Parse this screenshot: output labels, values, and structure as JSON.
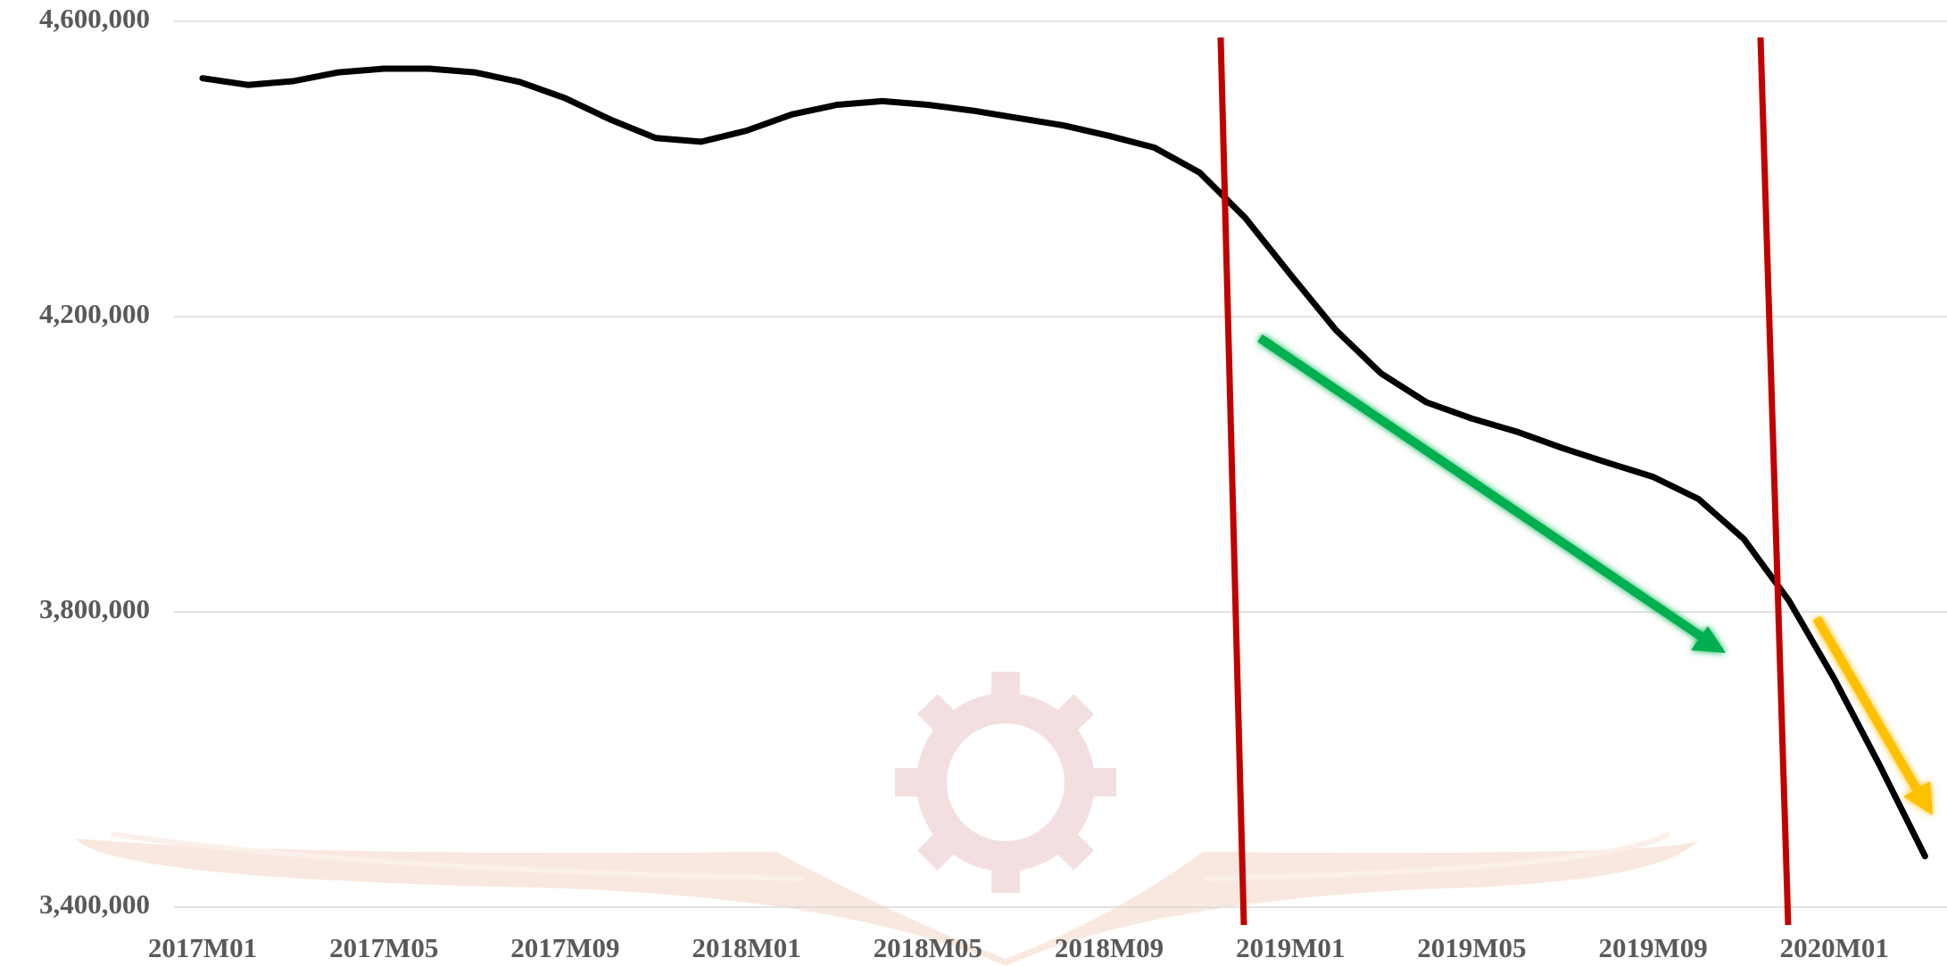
{
  "chart_data": {
    "type": "line",
    "categories": [
      "2017M01",
      null,
      null,
      null,
      "2017M05",
      null,
      null,
      null,
      "2017M09",
      null,
      null,
      null,
      "2018M01",
      null,
      null,
      null,
      "2018M05",
      null,
      null,
      null,
      "2018M09",
      null,
      null,
      null,
      "2019M01",
      null,
      null,
      null,
      "2019M05",
      null,
      null,
      null,
      "2019M09",
      null,
      null,
      null,
      "2020M01",
      null,
      null
    ],
    "values": [
      4523000,
      4514000,
      4519000,
      4531000,
      4536000,
      4536000,
      4531000,
      4518000,
      4496000,
      4467000,
      4442000,
      4437000,
      4452000,
      4474000,
      4487000,
      4492000,
      4487000,
      4479000,
      4469000,
      4459000,
      4445000,
      4429000,
      4395000,
      4334000,
      4257000,
      4182000,
      4123000,
      4084000,
      4062000,
      4044000,
      4022000,
      4002000,
      3983000,
      3953000,
      3899000,
      3815000,
      3709000,
      3592000,
      3469000
    ],
    "color": "#000000",
    "ylim": [
      3400000,
      4600000
    ],
    "yticks": [
      {
        "value": 3400000,
        "label": "3,400,000"
      },
      {
        "value": 3800000,
        "label": "3,800,000"
      },
      {
        "value": 4200000,
        "label": "4,200,000"
      },
      {
        "value": 4600000,
        "label": "4,600,000"
      }
    ],
    "grid": true
  }
}
